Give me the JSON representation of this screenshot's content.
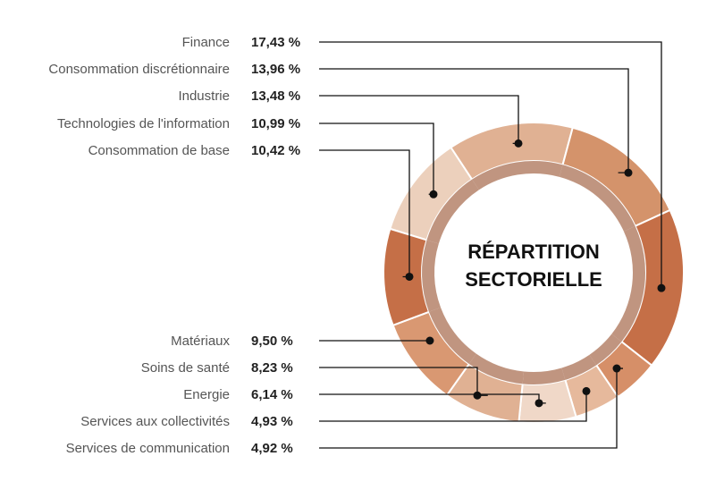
{
  "chart_data": {
    "type": "pie",
    "title": "RÉPARTITION SECTORIELLE",
    "title_lines": [
      "RÉPARTITION",
      "SECTORIELLE"
    ],
    "slices": [
      {
        "label": "Finance",
        "value": 17.43,
        "value_text": "17,43 %",
        "color": "#c56f47"
      },
      {
        "label": "Consommation discrétionnaire",
        "value": 13.96,
        "value_text": "13,96 %",
        "color": "#d4936b"
      },
      {
        "label": "Industrie",
        "value": 13.48,
        "value_text": "13,48 %",
        "color": "#e0b193"
      },
      {
        "label": "Technologies de l'information",
        "value": 10.99,
        "value_text": "10,99 %",
        "color": "#ecd0bc"
      },
      {
        "label": "Consommation de base",
        "value": 10.42,
        "value_text": "10,42 %",
        "color": "#c56f47"
      },
      {
        "label": "Matériaux",
        "value": 9.5,
        "value_text": "9,50 %",
        "color": "#d99872"
      },
      {
        "label": "Soins de santé",
        "value": 8.23,
        "value_text": "8,23 %",
        "color": "#e0b193"
      },
      {
        "label": "Energie",
        "value": 6.14,
        "value_text": "6,14 %",
        "color": "#f0d8c8"
      },
      {
        "label": "Services aux collectivités",
        "value": 4.93,
        "value_text": "4,93 %",
        "color": "#e6b99c"
      },
      {
        "label": "Services de communication",
        "value": 4.92,
        "value_text": "4,92 %",
        "color": "#d68f68"
      }
    ],
    "legend_position": "left",
    "inner_ring_color": "#b5836a"
  }
}
